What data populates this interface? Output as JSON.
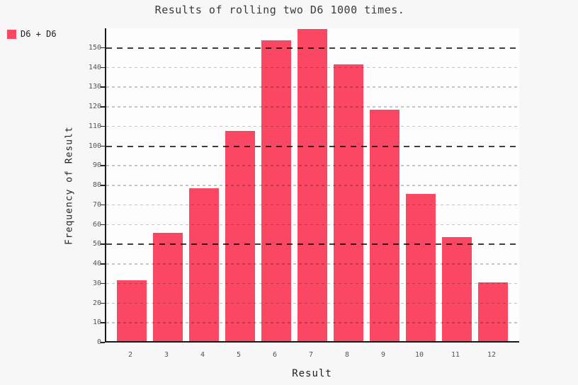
{
  "title": "Results of rolling two D6 1000 times.",
  "legend": {
    "items": [
      {
        "label": "D6 + D6",
        "color": "#fa4864"
      }
    ]
  },
  "chart_data": {
    "type": "bar",
    "title": "Results of rolling two D6 1000 times.",
    "xlabel": "Result",
    "ylabel": "Frequency of Result",
    "categories": [
      "2",
      "3",
      "4",
      "5",
      "6",
      "7",
      "8",
      "9",
      "10",
      "11",
      "12"
    ],
    "series": [
      {
        "name": "D6 + D6",
        "values": [
          31,
          55,
          78,
          107,
          153,
          159,
          141,
          118,
          75,
          53,
          30
        ]
      }
    ],
    "total_rolls": 1000,
    "ylim": [
      0,
      160
    ],
    "yticks": [
      0,
      10,
      20,
      30,
      40,
      50,
      60,
      70,
      80,
      90,
      100,
      110,
      120,
      130,
      140,
      150
    ],
    "major_gridlines": [
      50,
      100,
      150
    ],
    "grid": "dashed",
    "legend_position": "top-left",
    "bar_color": "#fa4864",
    "colors": {
      "background": "#f7f7f7",
      "plot_background": "#fdfdfd",
      "bar": "#fa4864",
      "major_grid": "#3f3f3f",
      "minor_grid": "#c7c7c7",
      "axis": "#1a1a1a",
      "tick_text": "#555555",
      "title_text": "#3a3a3a"
    }
  }
}
